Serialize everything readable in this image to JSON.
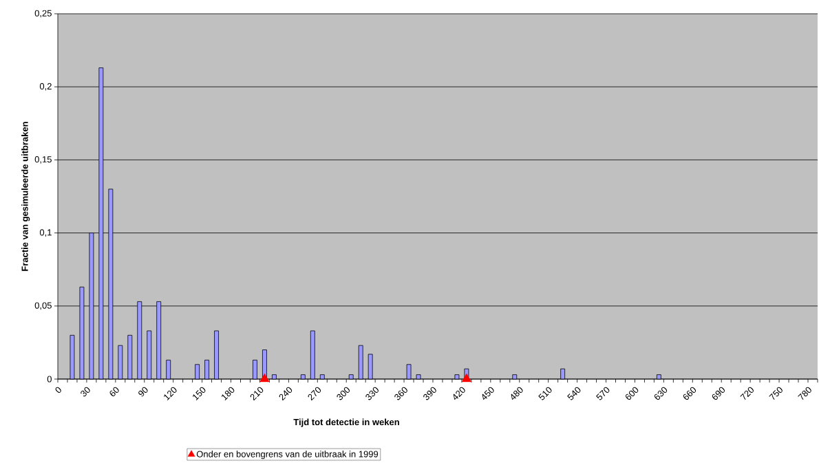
{
  "chart_data": {
    "type": "bar",
    "xlabel": "Tijd tot detectie in weken",
    "ylabel": "Fractie van gesimuleerde uitbraken",
    "x": [
      15,
      25,
      35,
      45,
      55,
      65,
      75,
      85,
      95,
      105,
      115,
      145,
      155,
      165,
      205,
      215,
      225,
      255,
      265,
      275,
      305,
      315,
      325,
      365,
      375,
      415,
      425,
      475,
      525,
      625
    ],
    "series": [
      {
        "color": "#9999ff",
        "values": [
          0.03,
          0.063,
          0.1,
          0.213,
          0.13,
          0.023,
          0.03,
          0.053,
          0.033,
          0.053,
          0.013,
          0.01,
          0.013,
          0.033,
          0.013,
          0.02,
          0.003,
          0.003,
          0.033,
          0.003,
          0.003,
          0.023,
          0.017,
          0.01,
          0.003,
          0.003,
          0.007,
          0.003,
          0.007,
          0.003
        ]
      },
      {
        "type": "scatter",
        "name": "Onder en bovengrens van de uitbraak in 1999",
        "color": "#ff0000",
        "marker": "triangle",
        "x": [
          215,
          425
        ],
        "values": [
          0,
          0
        ]
      }
    ],
    "xlim": [
      0,
      790
    ],
    "xticks": [
      0,
      {
        "value": 10,
        "label": null
      },
      {
        "value": 20,
        "label": null
      },
      30,
      {
        "value": 40,
        "label": null
      },
      {
        "value": 50,
        "label": null
      },
      60,
      {
        "value": 70,
        "label": null
      },
      {
        "value": 80,
        "label": null
      },
      90,
      {
        "value": 100,
        "label": null
      },
      {
        "value": 110,
        "label": null
      },
      120,
      {
        "value": 130,
        "label": null
      },
      {
        "value": 140,
        "label": null
      },
      150,
      {
        "value": 160,
        "label": null
      },
      {
        "value": 170,
        "label": null
      },
      180,
      {
        "value": 190,
        "label": null
      },
      {
        "value": 200,
        "label": null
      },
      210,
      {
        "value": 220,
        "label": null
      },
      {
        "value": 230,
        "label": null
      },
      240,
      {
        "value": 250,
        "label": null
      },
      {
        "value": 260,
        "label": null
      },
      270,
      {
        "value": 280,
        "label": null
      },
      {
        "value": 290,
        "label": null
      },
      300,
      {
        "value": 310,
        "label": null
      },
      {
        "value": 320,
        "label": null
      },
      330,
      {
        "value": 340,
        "label": null
      },
      {
        "value": 350,
        "label": null
      },
      360,
      {
        "value": 370,
        "label": null
      },
      {
        "value": 380,
        "label": null
      },
      390,
      {
        "value": 400,
        "label": null
      },
      {
        "value": 410,
        "label": null
      },
      420,
      {
        "value": 430,
        "label": null
      },
      {
        "value": 440,
        "label": null
      },
      450,
      {
        "value": 460,
        "label": null
      },
      {
        "value": 470,
        "label": null
      },
      480,
      {
        "value": 490,
        "label": null
      },
      {
        "value": 500,
        "label": null
      },
      510,
      {
        "value": 520,
        "label": null
      },
      {
        "value": 530,
        "label": null
      },
      540,
      {
        "value": 550,
        "label": null
      },
      {
        "value": 560,
        "label": null
      },
      570,
      {
        "value": 580,
        "label": null
      },
      {
        "value": 590,
        "label": null
      },
      600,
      {
        "value": 610,
        "label": null
      },
      {
        "value": 620,
        "label": null
      },
      630,
      {
        "value": 640,
        "label": null
      },
      {
        "value": 650,
        "label": null
      },
      660,
      {
        "value": 670,
        "label": null
      },
      {
        "value": 680,
        "label": null
      },
      690,
      {
        "value": 700,
        "label": null
      },
      {
        "value": 710,
        "label": null
      },
      720,
      {
        "value": 730,
        "label": null
      },
      {
        "value": 740,
        "label": null
      },
      750,
      {
        "value": 760,
        "label": null
      },
      {
        "value": 770,
        "label": null
      },
      780,
      {
        "value": 790,
        "label": null
      }
    ],
    "ylim": [
      0,
      0.25
    ],
    "yticks": [
      0,
      {
        "value": 0.05,
        "label": "0,05"
      },
      {
        "value": 0.1,
        "label": "0,1"
      },
      {
        "value": 0.15,
        "label": "0,15"
      },
      {
        "value": 0.2,
        "label": "0,2"
      },
      {
        "value": 0.25,
        "label": "0,25"
      }
    ],
    "grid": "y",
    "legend": "bottom"
  }
}
